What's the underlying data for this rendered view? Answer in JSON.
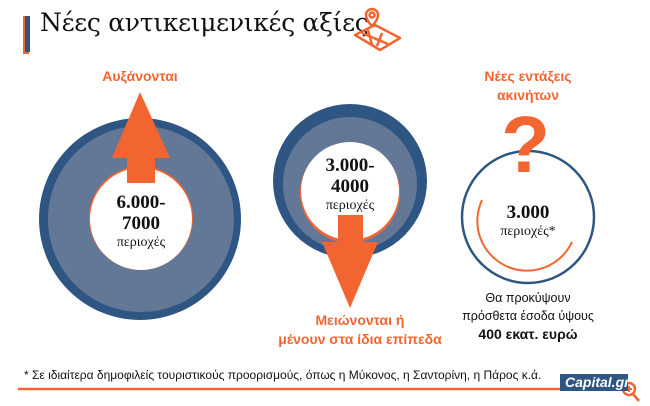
{
  "title": "Νέες αντικειμενικές αξίες",
  "colors": {
    "accent": "#f26531",
    "navy": "#2f5683",
    "ring": "#637897"
  },
  "icons": {
    "title_icon": "map-pin-icon",
    "logo_icon": "zoom-in-icon"
  },
  "groups": [
    {
      "label": "Αυξάνονται",
      "value": "6.000-",
      "value2": "7000",
      "unit": "περιοχές",
      "direction": "up"
    },
    {
      "label_line1": "Μειώνονται ή",
      "label_line2": "μένουν στα ίδια επίπεδα",
      "value": "3.000-",
      "value2": "4000",
      "unit": "περιοχές",
      "direction": "down"
    },
    {
      "label_line1": "Νέες εντάξεις",
      "label_line2": "ακινήτων",
      "symbol": "?",
      "value": "3.000",
      "unit": "περιοχές*",
      "note_line1": "Θα προκύψουν",
      "note_line2": "πρόσθετα έσοδα ύψους",
      "note_line3": "400 εκατ. ευρώ"
    }
  ],
  "footnote": "* Σε ιδιαίτερα δημοφιλείς τουριστικούς προορισμούς, όπως η Μύκονος, η Σαντορίνη, η Πάρος κ.ά.",
  "logo": "Capital.gr"
}
